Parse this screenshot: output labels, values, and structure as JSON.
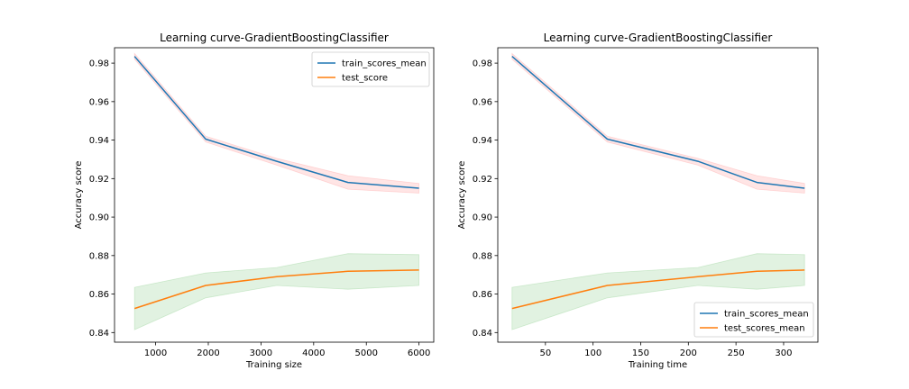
{
  "chart_data": [
    {
      "type": "line",
      "title": "Learning curve-GradientBoostingClassifier",
      "xlabel": "Training size",
      "ylabel": "Accuracy score",
      "xlim": [
        220,
        6280
      ],
      "ylim": [
        0.835,
        0.988
      ],
      "xticks": [
        1000,
        2000,
        3000,
        4000,
        5000,
        6000
      ],
      "yticks": [
        0.84,
        0.86,
        0.88,
        0.9,
        0.92,
        0.94,
        0.96,
        0.98
      ],
      "x": [
        600,
        1950,
        3300,
        4650,
        6000
      ],
      "series": [
        {
          "name": "train_scores_mean",
          "color": "#1f77b4",
          "values": [
            0.9835,
            0.9405,
            0.929,
            0.918,
            0.915
          ],
          "band_lower": [
            0.982,
            0.939,
            0.927,
            0.9145,
            0.9125
          ],
          "band_upper": [
            0.985,
            0.942,
            0.9305,
            0.9215,
            0.9175
          ],
          "band_color": "#ff9999"
        },
        {
          "name": "test_score",
          "color": "#ff7f0e",
          "values": [
            0.8525,
            0.8645,
            0.869,
            0.8718,
            0.8725
          ],
          "band_lower": [
            0.8415,
            0.858,
            0.8645,
            0.8625,
            0.8645
          ],
          "band_upper": [
            0.8635,
            0.871,
            0.8738,
            0.881,
            0.8805
          ],
          "band_color": "#88cc88"
        }
      ],
      "legend": "top-right"
    },
    {
      "type": "line",
      "title": "Learning curve-GradientBoostingClassifier",
      "xlabel": "Training time",
      "ylabel": "Accuracy score",
      "xlim": [
        0,
        336
      ],
      "ylim": [
        0.835,
        0.988
      ],
      "xticks": [
        50,
        100,
        150,
        200,
        250,
        300
      ],
      "yticks": [
        0.84,
        0.86,
        0.88,
        0.9,
        0.92,
        0.94,
        0.96,
        0.98
      ],
      "x": [
        15,
        115,
        210,
        272,
        322
      ],
      "series": [
        {
          "name": "train_scores_mean",
          "color": "#1f77b4",
          "values": [
            0.9835,
            0.9405,
            0.929,
            0.918,
            0.915
          ],
          "band_lower": [
            0.982,
            0.939,
            0.927,
            0.9145,
            0.9125
          ],
          "band_upper": [
            0.985,
            0.942,
            0.9305,
            0.9215,
            0.9175
          ],
          "band_color": "#ff9999"
        },
        {
          "name": "test_scores_mean",
          "color": "#ff7f0e",
          "values": [
            0.8525,
            0.8645,
            0.869,
            0.8718,
            0.8725
          ],
          "band_lower": [
            0.8415,
            0.858,
            0.8645,
            0.8625,
            0.8645
          ],
          "band_upper": [
            0.8635,
            0.871,
            0.8738,
            0.881,
            0.8805
          ],
          "band_color": "#88cc88"
        }
      ],
      "legend": "bottom-right"
    }
  ]
}
